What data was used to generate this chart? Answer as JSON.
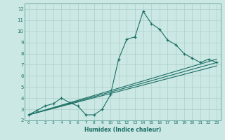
{
  "bg_color": "#cce8e4",
  "grid_color": "#aacfcb",
  "line_color": "#1a6e64",
  "xlabel": "Humidex (Indice chaleur)",
  "xlim": [
    -0.5,
    23.5
  ],
  "ylim": [
    2,
    12.5
  ],
  "xticks": [
    0,
    1,
    2,
    3,
    4,
    5,
    6,
    7,
    8,
    9,
    10,
    11,
    12,
    13,
    14,
    15,
    16,
    17,
    18,
    19,
    20,
    21,
    22,
    23
  ],
  "yticks": [
    2,
    3,
    4,
    5,
    6,
    7,
    8,
    9,
    10,
    11,
    12
  ],
  "series_main": {
    "x": [
      0,
      1,
      2,
      3,
      4,
      5,
      6,
      7,
      8,
      9,
      10,
      11,
      12,
      13,
      14,
      15,
      16,
      17,
      18,
      19,
      20,
      21,
      22,
      23
    ],
    "y": [
      2.5,
      2.9,
      3.3,
      3.5,
      4.0,
      3.6,
      3.3,
      2.5,
      2.5,
      3.0,
      4.3,
      7.5,
      9.3,
      9.5,
      11.8,
      10.7,
      10.2,
      9.2,
      8.8,
      8.0,
      7.6,
      7.2,
      7.5,
      7.2
    ]
  },
  "series_line1": {
    "x": [
      0,
      23
    ],
    "y": [
      2.5,
      7.5
    ]
  },
  "series_line2": {
    "x": [
      0,
      23
    ],
    "y": [
      2.5,
      7.2
    ]
  },
  "series_line3": {
    "x": [
      0,
      23
    ],
    "y": [
      2.5,
      6.9
    ]
  }
}
